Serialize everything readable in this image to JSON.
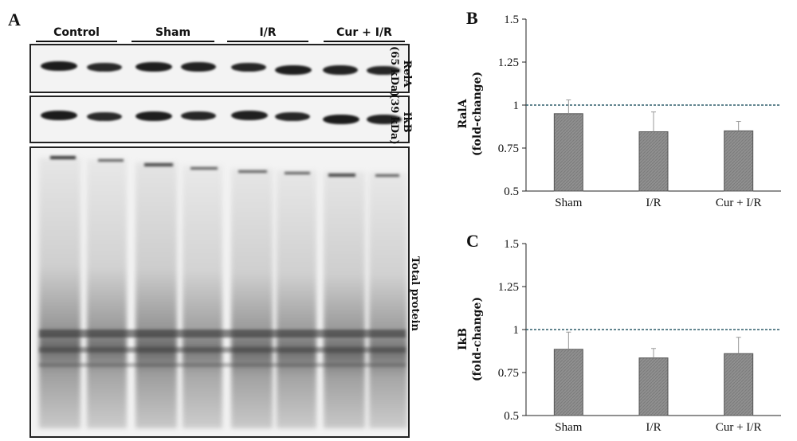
{
  "panel_a": {
    "letter": "A",
    "groups": [
      "Control",
      "Sham",
      "I/R",
      "Cur + I/R"
    ],
    "blot_labels": {
      "rela_name": "RelA",
      "rela_kda": "(65 kDa)",
      "ikb_name": "IkB",
      "ikb_kda": "(39 kDa)",
      "total": "Total protein"
    }
  },
  "chart_data": [
    {
      "type": "bar",
      "panel": "B",
      "categories": [
        "Sham",
        "I/R",
        "Cur + I/R"
      ],
      "values": [
        0.95,
        0.845,
        0.85
      ],
      "errors": [
        0.08,
        0.115,
        0.055
      ],
      "reference_line": 1,
      "ylabel": "RalA (fold-change)",
      "ylabel_line1": "RalA",
      "ylabel_line2": "(fold-change)",
      "ylim": [
        0.5,
        1.5
      ],
      "yticks": [
        0.5,
        0.75,
        1,
        1.25,
        1.5
      ],
      "ytick_labels": [
        "0.5",
        "0.75",
        "1",
        "1.25",
        "1.5"
      ],
      "bar_color": "#909090"
    },
    {
      "type": "bar",
      "panel": "C",
      "categories": [
        "Sham",
        "I/R",
        "Cur + I/R"
      ],
      "values": [
        0.885,
        0.835,
        0.86
      ],
      "errors": [
        0.1,
        0.055,
        0.095
      ],
      "reference_line": 1,
      "ylabel": "IkB (fold-change)",
      "ylabel_line1": "IkB",
      "ylabel_line2": "(fold-change)",
      "ylim": [
        0.5,
        1.5
      ],
      "yticks": [
        0.5,
        0.75,
        1,
        1.25,
        1.5
      ],
      "ytick_labels": [
        "0.5",
        "0.75",
        "1",
        "1.25",
        "1.5"
      ],
      "bar_color": "#909090"
    }
  ]
}
